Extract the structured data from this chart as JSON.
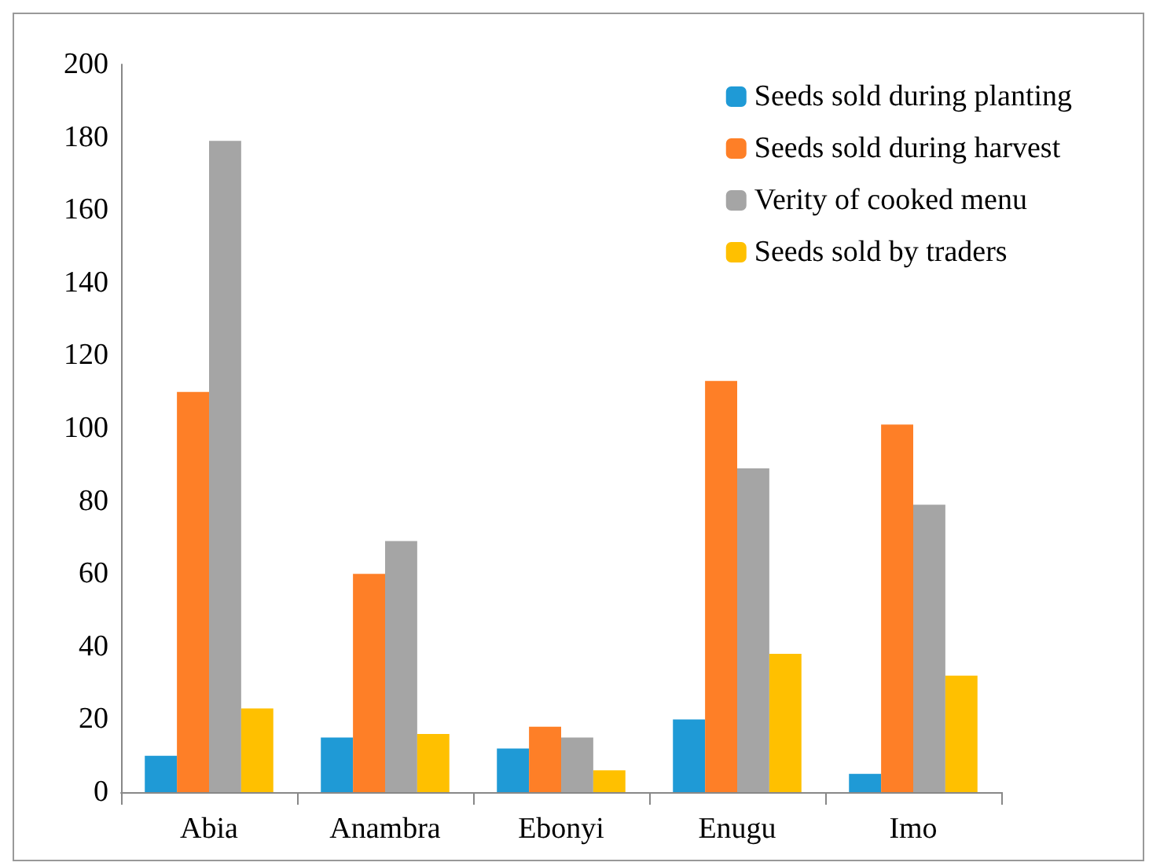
{
  "chart_data": {
    "type": "bar",
    "categories": [
      "Abia",
      "Anambra",
      "Ebonyi",
      "Enugu",
      "Imo"
    ],
    "series": [
      {
        "name": "Seeds sold during planting",
        "color": "#1f9ad6",
        "values": [
          10,
          15,
          12,
          20,
          5
        ]
      },
      {
        "name": "Seeds sold during harvest",
        "color": "#fe7f27",
        "values": [
          110,
          60,
          18,
          113,
          101
        ]
      },
      {
        "name": "Verity of cooked menu",
        "color": "#a5a5a5",
        "values": [
          179,
          69,
          15,
          89,
          79
        ]
      },
      {
        "name": "Seeds sold by traders",
        "color": "#ffc000",
        "values": [
          23,
          16,
          6,
          38,
          32
        ]
      }
    ],
    "ylim": [
      0,
      200
    ],
    "yticks": [
      0,
      20,
      40,
      60,
      80,
      100,
      120,
      140,
      160,
      180,
      200
    ],
    "grid": false,
    "legend": "top right"
  }
}
